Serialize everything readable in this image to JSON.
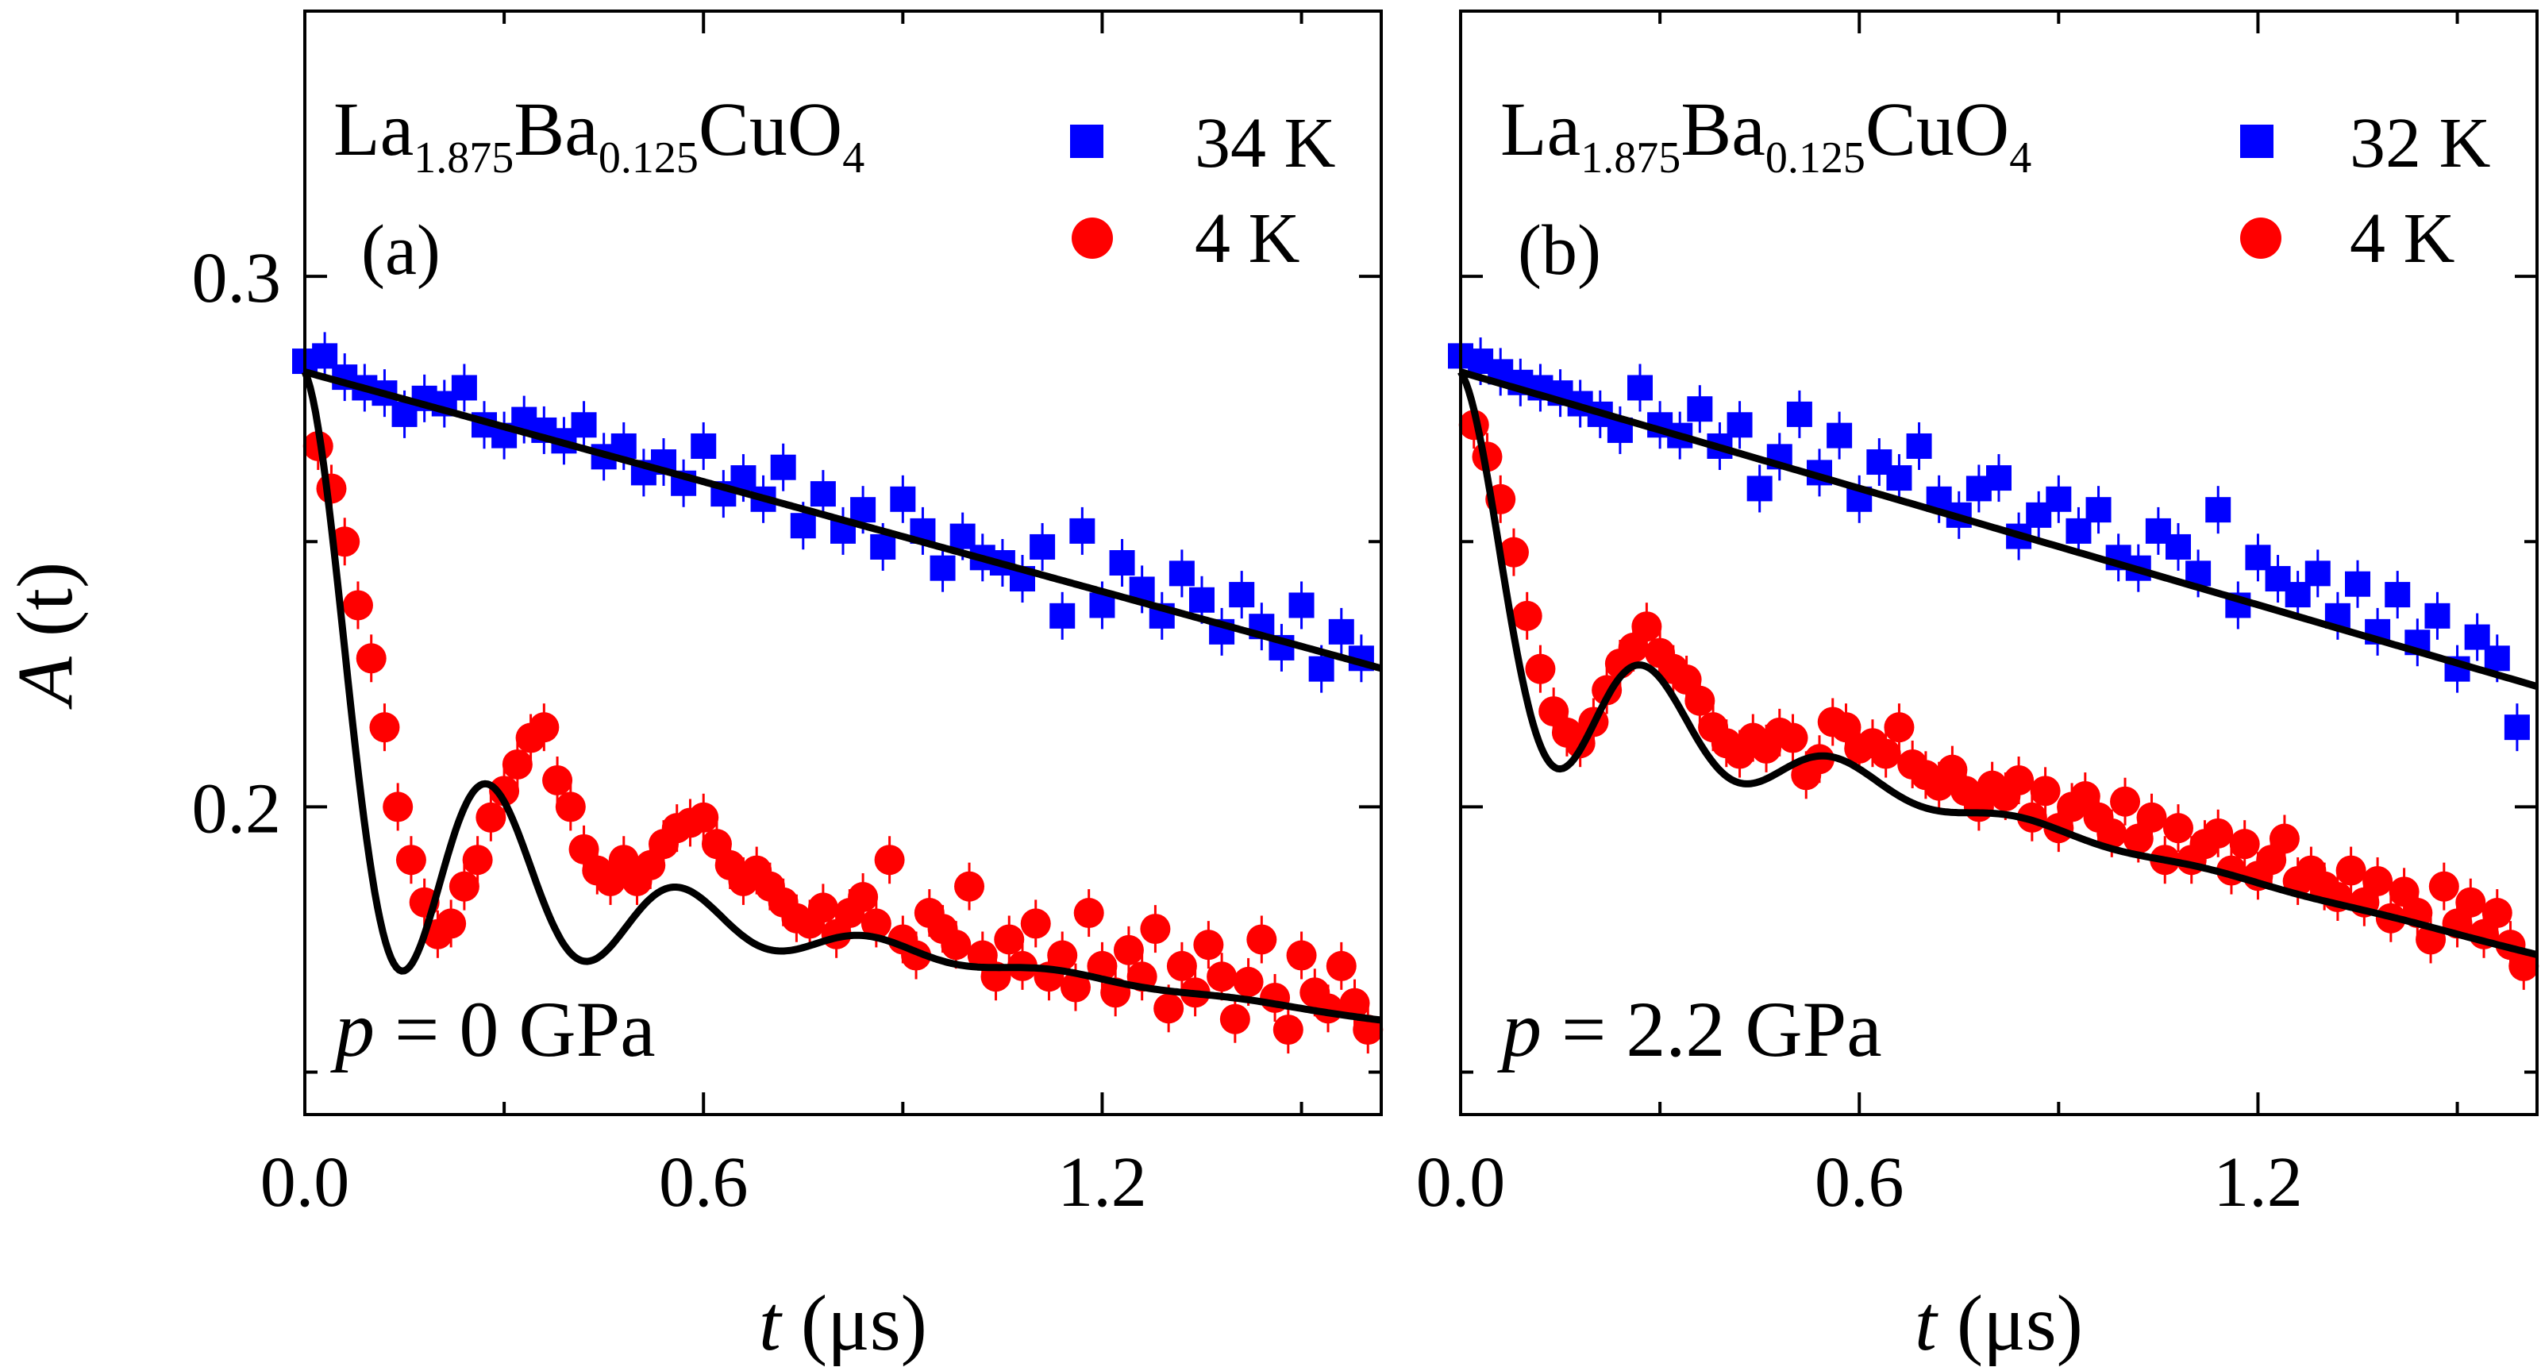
{
  "chart_data": [
    {
      "type": "scatter",
      "panel_label": "(a)",
      "compound": {
        "base1": "La",
        "sub1": "1.875",
        "base2": "Ba",
        "sub2": "0.125",
        "base3": "CuO",
        "sub3": "4"
      },
      "pressure": {
        "var": "p",
        "text": " = 0 GPa"
      },
      "xlabel": {
        "var": "t",
        "unit": " (μs)"
      },
      "ylabel": {
        "var": "A",
        "rest": " (t)"
      },
      "xlim": [
        0.0,
        1.62
      ],
      "ylim": [
        0.142,
        0.35
      ],
      "xticks": [
        "0.0",
        "0.6",
        "1.2"
      ],
      "yticks": [
        "0.2",
        "0.3"
      ],
      "legend_position": "top-right",
      "series": [
        {
          "name": "34 K",
          "marker": "square",
          "color": "#0000ff",
          "fit": {
            "kind": "linear",
            "a0": 0.282,
            "slope": -0.0345
          },
          "x": [
            0.0,
            0.03,
            0.06,
            0.09,
            0.12,
            0.15,
            0.18,
            0.21,
            0.24,
            0.27,
            0.3,
            0.33,
            0.36,
            0.39,
            0.42,
            0.45,
            0.48,
            0.51,
            0.54,
            0.57,
            0.6,
            0.63,
            0.66,
            0.69,
            0.72,
            0.75,
            0.78,
            0.81,
            0.84,
            0.87,
            0.9,
            0.93,
            0.96,
            0.99,
            1.02,
            1.05,
            1.08,
            1.11,
            1.14,
            1.17,
            1.2,
            1.23,
            1.26,
            1.29,
            1.32,
            1.35,
            1.38,
            1.41,
            1.44,
            1.47,
            1.5,
            1.53,
            1.56,
            1.59
          ],
          "y": [
            0.284,
            0.285,
            0.281,
            0.279,
            0.278,
            0.274,
            0.277,
            0.276,
            0.279,
            0.272,
            0.27,
            0.273,
            0.271,
            0.269,
            0.272,
            0.266,
            0.268,
            0.263,
            0.265,
            0.261,
            0.268,
            0.259,
            0.262,
            0.258,
            0.264,
            0.253,
            0.259,
            0.252,
            0.256,
            0.249,
            0.258,
            0.252,
            0.245,
            0.251,
            0.247,
            0.246,
            0.243,
            0.249,
            0.236,
            0.252,
            0.238,
            0.246,
            0.241,
            0.236,
            0.244,
            0.239,
            0.233,
            0.24,
            0.234,
            0.23,
            0.238,
            0.226,
            0.233,
            0.228
          ]
        },
        {
          "name": "4 K",
          "marker": "circle",
          "color": "#ff0000",
          "fit": {
            "kind": "osc",
            "a0": 0.282,
            "ainf": 0.189,
            "slope": -0.018,
            "f": 3.5,
            "sigma": 4.0,
            "lambda": 1.6
          },
          "x": [
            0.02,
            0.04,
            0.06,
            0.08,
            0.1,
            0.12,
            0.14,
            0.16,
            0.18,
            0.2,
            0.22,
            0.24,
            0.26,
            0.28,
            0.3,
            0.32,
            0.34,
            0.36,
            0.38,
            0.4,
            0.42,
            0.44,
            0.46,
            0.48,
            0.5,
            0.52,
            0.54,
            0.56,
            0.58,
            0.6,
            0.62,
            0.64,
            0.66,
            0.68,
            0.7,
            0.72,
            0.74,
            0.76,
            0.78,
            0.8,
            0.82,
            0.84,
            0.86,
            0.88,
            0.9,
            0.92,
            0.94,
            0.96,
            0.98,
            1.0,
            1.02,
            1.04,
            1.06,
            1.08,
            1.1,
            1.12,
            1.14,
            1.16,
            1.18,
            1.2,
            1.22,
            1.24,
            1.26,
            1.28,
            1.3,
            1.32,
            1.34,
            1.36,
            1.38,
            1.4,
            1.42,
            1.44,
            1.46,
            1.48,
            1.5,
            1.52,
            1.54,
            1.56,
            1.58,
            1.6
          ],
          "y": [
            0.268,
            0.26,
            0.25,
            0.238,
            0.228,
            0.215,
            0.2,
            0.19,
            0.182,
            0.176,
            0.178,
            0.185,
            0.19,
            0.198,
            0.203,
            0.208,
            0.213,
            0.215,
            0.205,
            0.2,
            0.192,
            0.188,
            0.186,
            0.19,
            0.186,
            0.189,
            0.193,
            0.196,
            0.197,
            0.198,
            0.193,
            0.189,
            0.186,
            0.188,
            0.185,
            0.182,
            0.179,
            0.178,
            0.181,
            0.176,
            0.18,
            0.183,
            0.178,
            0.19,
            0.175,
            0.172,
            0.18,
            0.177,
            0.174,
            0.185,
            0.172,
            0.168,
            0.175,
            0.17,
            0.178,
            0.168,
            0.172,
            0.166,
            0.18,
            0.17,
            0.165,
            0.173,
            0.168,
            0.177,
            0.162,
            0.17,
            0.165,
            0.174,
            0.168,
            0.16,
            0.167,
            0.175,
            0.164,
            0.158,
            0.172,
            0.165,
            0.162,
            0.17,
            0.163,
            0.158
          ]
        }
      ]
    },
    {
      "type": "scatter",
      "panel_label": "(b)",
      "compound": {
        "base1": "La",
        "sub1": "1.875",
        "base2": "Ba",
        "sub2": "0.125",
        "base3": "CuO",
        "sub3": "4"
      },
      "pressure": {
        "var": "p",
        "text": " = 2.2 GPa"
      },
      "xlabel": {
        "var": "t",
        "unit": " (μs)"
      },
      "ylabel": {
        "var": "A",
        "rest": " (t)"
      },
      "xlim": [
        0.0,
        1.62
      ],
      "ylim": [
        0.142,
        0.35
      ],
      "xticks": [
        "0.0",
        "0.6",
        "1.2"
      ],
      "yticks": [
        "0.2",
        "0.3"
      ],
      "legend_position": "top-right",
      "series": [
        {
          "name": "32 K",
          "marker": "square",
          "color": "#0000ff",
          "fit": {
            "kind": "linear",
            "a0": 0.282,
            "slope": -0.0366
          },
          "x": [
            0.0,
            0.03,
            0.06,
            0.09,
            0.12,
            0.15,
            0.18,
            0.21,
            0.24,
            0.27,
            0.3,
            0.33,
            0.36,
            0.39,
            0.42,
            0.45,
            0.48,
            0.51,
            0.54,
            0.57,
            0.6,
            0.63,
            0.66,
            0.69,
            0.72,
            0.75,
            0.78,
            0.81,
            0.84,
            0.87,
            0.9,
            0.93,
            0.96,
            0.99,
            1.02,
            1.05,
            1.08,
            1.11,
            1.14,
            1.17,
            1.2,
            1.23,
            1.26,
            1.29,
            1.32,
            1.35,
            1.38,
            1.41,
            1.44,
            1.47,
            1.5,
            1.53,
            1.56,
            1.59
          ],
          "y": [
            0.285,
            0.284,
            0.282,
            0.28,
            0.279,
            0.278,
            0.276,
            0.274,
            0.271,
            0.279,
            0.272,
            0.27,
            0.275,
            0.268,
            0.272,
            0.26,
            0.266,
            0.274,
            0.263,
            0.27,
            0.258,
            0.265,
            0.262,
            0.268,
            0.258,
            0.255,
            0.26,
            0.262,
            0.251,
            0.255,
            0.258,
            0.252,
            0.256,
            0.247,
            0.245,
            0.252,
            0.249,
            0.244,
            0.256,
            0.238,
            0.247,
            0.243,
            0.24,
            0.244,
            0.236,
            0.242,
            0.233,
            0.24,
            0.231,
            0.236,
            0.226,
            0.232,
            0.228,
            0.215
          ]
        },
        {
          "name": "4 K",
          "marker": "circle",
          "color": "#ff0000",
          "fit": {
            "kind": "osc",
            "a0": 0.282,
            "ainf": 0.224,
            "slope": -0.032,
            "f": 3.5,
            "sigma": 4.2,
            "lambda": 1.8
          },
          "x": [
            0.02,
            0.04,
            0.06,
            0.08,
            0.1,
            0.12,
            0.14,
            0.16,
            0.18,
            0.2,
            0.22,
            0.24,
            0.26,
            0.28,
            0.3,
            0.32,
            0.34,
            0.36,
            0.38,
            0.4,
            0.42,
            0.44,
            0.46,
            0.48,
            0.5,
            0.52,
            0.54,
            0.56,
            0.58,
            0.6,
            0.62,
            0.64,
            0.66,
            0.68,
            0.7,
            0.72,
            0.74,
            0.76,
            0.78,
            0.8,
            0.82,
            0.84,
            0.86,
            0.88,
            0.9,
            0.92,
            0.94,
            0.96,
            0.98,
            1.0,
            1.02,
            1.04,
            1.06,
            1.08,
            1.1,
            1.12,
            1.14,
            1.16,
            1.18,
            1.2,
            1.22,
            1.24,
            1.26,
            1.28,
            1.3,
            1.32,
            1.34,
            1.36,
            1.38,
            1.4,
            1.42,
            1.44,
            1.46,
            1.48,
            1.5,
            1.52,
            1.54,
            1.56,
            1.58,
            1.6
          ],
          "y": [
            0.272,
            0.266,
            0.258,
            0.248,
            0.236,
            0.226,
            0.218,
            0.214,
            0.212,
            0.216,
            0.222,
            0.227,
            0.23,
            0.234,
            0.229,
            0.226,
            0.224,
            0.22,
            0.215,
            0.212,
            0.21,
            0.213,
            0.211,
            0.214,
            0.213,
            0.206,
            0.209,
            0.216,
            0.215,
            0.211,
            0.212,
            0.21,
            0.215,
            0.208,
            0.206,
            0.204,
            0.207,
            0.203,
            0.2,
            0.204,
            0.202,
            0.205,
            0.198,
            0.203,
            0.196,
            0.2,
            0.202,
            0.198,
            0.195,
            0.201,
            0.194,
            0.198,
            0.19,
            0.196,
            0.19,
            0.193,
            0.195,
            0.188,
            0.193,
            0.187,
            0.19,
            0.194,
            0.186,
            0.188,
            0.185,
            0.183,
            0.188,
            0.182,
            0.186,
            0.179,
            0.184,
            0.18,
            0.175,
            0.185,
            0.178,
            0.182,
            0.176,
            0.18,
            0.174,
            0.17
          ]
        }
      ]
    }
  ]
}
